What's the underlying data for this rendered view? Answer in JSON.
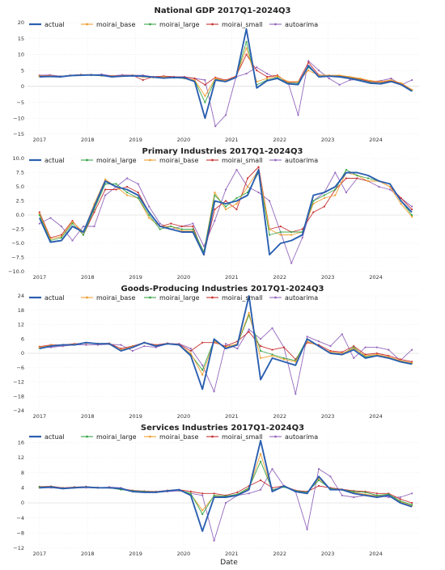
{
  "colors": {
    "actual": "#2b5fb0",
    "moirai_base": "#f0a032",
    "moirai_large": "#3aa74a",
    "moirai_small": "#c83232",
    "autoarima": "#9467bd"
  },
  "xlabel": "Date",
  "chart_data": [
    {
      "type": "line",
      "title": "National GDP 2017Q1-2024Q3",
      "legend": [
        "actual",
        "moirai_base",
        "moirai_large",
        "moirai_small",
        "autoarima"
      ],
      "legend_position": "top-left",
      "ylim": [
        -15,
        20
      ],
      "yticks": [
        -15,
        -10,
        -5,
        0,
        5,
        10,
        15,
        20
      ],
      "xticks": [
        "2017",
        "2018",
        "2019",
        "2020",
        "2021",
        "2022",
        "2023",
        "2024"
      ],
      "grid": true,
      "series": [
        {
          "name": "actual",
          "values": [
            3.0,
            3.1,
            3.0,
            3.4,
            3.5,
            3.6,
            3.5,
            3.0,
            3.2,
            3.3,
            3.2,
            2.9,
            2.6,
            2.8,
            2.7,
            1.5,
            -10.0,
            2.0,
            1.5,
            2.8,
            18.0,
            -0.5,
            1.8,
            2.5,
            0.8,
            0.6,
            6.5,
            3.0,
            3.2,
            3.0,
            2.5,
            1.8,
            1.0,
            0.8,
            1.5,
            0.5,
            -1.5
          ]
        },
        {
          "name": "moirai_base",
          "values": [
            3.2,
            3.3,
            3.0,
            3.5,
            3.6,
            3.6,
            3.4,
            3.2,
            3.3,
            3.4,
            3.0,
            2.8,
            3.0,
            2.8,
            2.6,
            2.0,
            -3.0,
            2.5,
            1.8,
            3.0,
            12.0,
            1.5,
            2.5,
            3.2,
            1.5,
            1.5,
            5.0,
            3.5,
            3.5,
            3.5,
            3.0,
            2.5,
            1.8,
            1.5,
            2.0,
            1.0,
            -1.0
          ]
        },
        {
          "name": "moirai_large",
          "values": [
            3.1,
            3.2,
            3.1,
            3.4,
            3.5,
            3.5,
            3.3,
            3.1,
            3.2,
            3.3,
            3.0,
            2.8,
            2.8,
            2.7,
            2.5,
            1.8,
            -5.0,
            2.3,
            1.7,
            2.9,
            14.0,
            0.5,
            2.0,
            2.8,
            1.0,
            1.0,
            6.0,
            3.2,
            3.3,
            3.2,
            2.7,
            2.0,
            1.2,
            1.0,
            1.6,
            0.6,
            -1.3
          ]
        },
        {
          "name": "moirai_small",
          "values": [
            3.3,
            3.4,
            3.1,
            3.5,
            3.7,
            3.7,
            3.5,
            3.3,
            3.4,
            3.5,
            2.0,
            3.0,
            3.2,
            3.0,
            2.9,
            2.5,
            0.5,
            2.8,
            2.0,
            3.2,
            10.0,
            5.0,
            3.0,
            3.5,
            1.2,
            1.4,
            7.5,
            3.6,
            3.4,
            3.4,
            2.8,
            2.3,
            1.5,
            1.3,
            1.8,
            0.8,
            -1.2
          ]
        },
        {
          "name": "autoarima",
          "values": [
            3.5,
            3.6,
            3.2,
            3.4,
            3.7,
            3.6,
            3.8,
            3.3,
            3.6,
            3.5,
            3.5,
            3.0,
            3.2,
            3.0,
            3.0,
            2.5,
            2.0,
            -12.5,
            -9.0,
            3.0,
            4.0,
            6.0,
            4.0,
            2.5,
            1.5,
            -9.0,
            8.0,
            5.0,
            2.5,
            0.5,
            2.0,
            2.2,
            1.5,
            1.8,
            2.5,
            0.5,
            2.0
          ]
        }
      ]
    },
    {
      "type": "line",
      "title": "Primary Industries 2017Q1-2024Q3",
      "legend": [
        "actual",
        "moirai_large",
        "moirai_base",
        "moirai_small",
        "autoarima"
      ],
      "legend_position": "top-left",
      "ylim": [
        -10,
        10
      ],
      "yticks": [
        -10.0,
        -7.5,
        -5.0,
        -2.5,
        0.0,
        2.5,
        5.0,
        7.5,
        10.0
      ],
      "xticks": [
        "2017",
        "2018",
        "2019",
        "2020",
        "2021",
        "2022",
        "2023",
        "2024"
      ],
      "grid": true,
      "series": [
        {
          "name": "actual",
          "values": [
            -0.5,
            -4.8,
            -4.5,
            -2.0,
            -3.0,
            1.5,
            6.0,
            5.0,
            4.5,
            3.5,
            0.5,
            -2.0,
            -2.5,
            -3.0,
            -3.0,
            -7.0,
            2.5,
            2.0,
            2.5,
            3.5,
            8.0,
            -7.0,
            -5.0,
            -4.5,
            -3.5,
            3.5,
            4.0,
            5.0,
            7.5,
            7.5,
            7.0,
            6.0,
            5.5,
            2.5,
            0.5
          ]
        },
        {
          "name": "moirai_large",
          "values": [
            0.0,
            -4.5,
            -4.0,
            -1.5,
            -3.5,
            1.0,
            5.5,
            5.5,
            4.0,
            3.0,
            0.0,
            -2.5,
            -2.0,
            -2.5,
            -2.5,
            -6.5,
            3.5,
            1.5,
            3.0,
            4.0,
            7.5,
            -3.5,
            -3.0,
            -3.0,
            -3.0,
            2.5,
            3.5,
            4.5,
            8.0,
            7.0,
            6.5,
            6.0,
            5.5,
            2.5,
            0.0
          ]
        },
        {
          "name": "moirai_base",
          "values": [
            0.2,
            -4.2,
            -3.8,
            -1.2,
            -3.0,
            2.0,
            6.3,
            5.0,
            3.5,
            3.0,
            -0.5,
            -2.0,
            -2.0,
            -2.8,
            -2.8,
            -6.5,
            4.0,
            1.0,
            2.0,
            5.0,
            8.0,
            -2.5,
            -3.5,
            -3.5,
            -3.0,
            2.0,
            3.0,
            3.5,
            7.5,
            7.0,
            6.0,
            6.0,
            5.0,
            2.0,
            -0.3
          ]
        },
        {
          "name": "moirai_small",
          "values": [
            0.5,
            -4.0,
            -3.5,
            -1.0,
            -3.5,
            0.5,
            4.5,
            4.5,
            5.0,
            4.0,
            0.5,
            -2.0,
            -1.5,
            -2.0,
            -2.0,
            -7.0,
            1.0,
            2.5,
            1.0,
            6.5,
            8.5,
            -2.5,
            -2.0,
            -3.0,
            -2.5,
            0.5,
            1.5,
            4.5,
            6.5,
            6.5,
            6.0,
            6.0,
            5.0,
            3.0,
            1.0
          ]
        },
        {
          "name": "autoarima",
          "values": [
            -1.5,
            -0.5,
            -2.0,
            -4.5,
            -2.0,
            -2.0,
            3.5,
            5.0,
            6.5,
            5.5,
            1.5,
            -1.5,
            -2.5,
            -2.0,
            -1.5,
            -5.5,
            -1.0,
            4.5,
            8.0,
            5.0,
            4.0,
            2.5,
            -3.0,
            -8.5,
            -4.0,
            2.5,
            4.0,
            7.5,
            4.0,
            6.5,
            6.0,
            5.0,
            4.5,
            3.0,
            1.5
          ]
        }
      ]
    },
    {
      "type": "line",
      "title": "Goods-Producing Industries 2017Q1-2024Q3",
      "legend": [
        "actual",
        "moirai_base",
        "moirai_large",
        "moirai_small",
        "autoarima"
      ],
      "legend_position": "top-left",
      "ylim": [
        -24,
        24
      ],
      "yticks": [
        -24,
        -18,
        -12,
        -6,
        0,
        6,
        12,
        18,
        24
      ],
      "xticks": [
        "2017",
        "2018",
        "2019",
        "2020",
        "2021",
        "2022",
        "2023",
        "2024"
      ],
      "grid": true,
      "series": [
        {
          "name": "actual",
          "values": [
            2.0,
            3.0,
            3.5,
            3.5,
            4.5,
            4.0,
            4.0,
            1.0,
            2.5,
            4.5,
            3.0,
            4.0,
            3.5,
            -1.0,
            -15.0,
            6.0,
            2.0,
            3.5,
            24.0,
            -11.0,
            -2.0,
            -3.5,
            -5.0,
            6.0,
            3.0,
            0.0,
            -0.5,
            1.5,
            -2.0,
            -1.0,
            -2.0,
            -3.5,
            -4.5
          ]
        },
        {
          "name": "moirai_base",
          "values": [
            2.5,
            3.3,
            3.5,
            3.8,
            4.3,
            4.0,
            4.0,
            1.5,
            2.8,
            4.3,
            3.2,
            4.0,
            3.5,
            0.0,
            -9.0,
            5.0,
            2.5,
            4.0,
            17.0,
            -2.0,
            -1.0,
            -2.5,
            -3.5,
            5.0,
            3.0,
            0.5,
            0.0,
            2.0,
            -1.0,
            -0.5,
            -1.5,
            -3.0,
            -4.0
          ]
        },
        {
          "name": "moirai_large",
          "values": [
            2.2,
            3.1,
            3.5,
            3.6,
            4.4,
            4.0,
            4.0,
            1.2,
            2.6,
            4.4,
            3.1,
            4.0,
            3.5,
            -0.5,
            -7.0,
            5.5,
            2.3,
            3.8,
            16.0,
            1.0,
            -0.5,
            -2.0,
            -3.0,
            6.0,
            3.0,
            0.3,
            -0.3,
            2.5,
            -1.5,
            -0.8,
            -1.8,
            -3.2,
            -4.2
          ]
        },
        {
          "name": "moirai_small",
          "values": [
            2.8,
            3.5,
            3.6,
            4.0,
            4.2,
            4.1,
            4.2,
            2.0,
            3.0,
            4.5,
            3.5,
            4.2,
            3.8,
            1.0,
            4.5,
            4.5,
            3.0,
            5.0,
            9.0,
            3.0,
            1.5,
            2.5,
            -2.5,
            4.5,
            3.5,
            1.0,
            0.5,
            3.0,
            -0.5,
            0.0,
            -1.0,
            -2.5,
            -3.5
          ]
        },
        {
          "name": "autoarima",
          "values": [
            2.5,
            2.5,
            3.0,
            3.5,
            3.5,
            3.5,
            3.8,
            3.5,
            1.0,
            3.0,
            2.5,
            4.0,
            4.0,
            2.0,
            -5.0,
            -16.0,
            4.0,
            2.0,
            10.0,
            6.0,
            10.5,
            2.5,
            -17.0,
            7.0,
            5.0,
            3.0,
            8.0,
            -2.0,
            2.5,
            2.5,
            1.5,
            -3.0,
            1.5
          ]
        }
      ]
    },
    {
      "type": "line",
      "title": "Services Industries 2017Q1-2024Q3",
      "legend": [
        "actual",
        "moirai_large",
        "moirai_base",
        "moirai_small",
        "autoarima"
      ],
      "legend_position": "top-left",
      "ylim": [
        -12,
        18
      ],
      "yticks": [
        -12,
        -8,
        -4,
        0,
        4,
        8,
        12,
        16
      ],
      "xticks": [
        "2017",
        "2018",
        "2019",
        "2020",
        "2021",
        "2022",
        "2023",
        "2024"
      ],
      "grid": true,
      "xlabel": "Date",
      "series": [
        {
          "name": "actual",
          "values": [
            4.0,
            4.2,
            3.8,
            4.0,
            4.2,
            4.0,
            4.0,
            3.8,
            3.0,
            2.8,
            2.8,
            3.2,
            3.5,
            2.0,
            -7.5,
            1.5,
            1.5,
            2.0,
            3.5,
            16.5,
            3.0,
            4.5,
            3.0,
            2.5,
            7.0,
            3.5,
            3.5,
            2.5,
            2.0,
            1.5,
            2.0,
            0.0,
            -1.0
          ]
        },
        {
          "name": "moirai_large",
          "values": [
            4.2,
            4.3,
            3.9,
            4.1,
            4.2,
            4.0,
            4.0,
            3.5,
            3.2,
            3.0,
            2.9,
            3.2,
            3.4,
            2.5,
            -3.0,
            2.0,
            1.8,
            2.3,
            4.0,
            11.0,
            3.5,
            4.2,
            3.2,
            2.8,
            6.0,
            3.8,
            3.5,
            3.0,
            2.8,
            2.0,
            2.3,
            0.5,
            -0.5
          ]
        },
        {
          "name": "moirai_base",
          "values": [
            4.1,
            4.2,
            3.8,
            4.0,
            4.1,
            4.0,
            4.0,
            3.6,
            3.1,
            2.9,
            2.9,
            3.2,
            3.4,
            2.3,
            -2.0,
            1.8,
            1.6,
            2.2,
            3.8,
            13.0,
            3.2,
            4.3,
            3.1,
            2.6,
            6.5,
            3.6,
            3.4,
            2.8,
            2.3,
            1.8,
            2.1,
            0.3,
            -0.8
          ]
        },
        {
          "name": "moirai_small",
          "values": [
            4.3,
            4.4,
            4.0,
            4.2,
            4.3,
            4.1,
            4.1,
            3.8,
            3.3,
            3.1,
            3.0,
            3.3,
            3.5,
            3.0,
            2.5,
            2.5,
            2.0,
            2.8,
            4.5,
            6.0,
            4.0,
            4.5,
            3.3,
            3.0,
            4.5,
            4.0,
            3.6,
            3.2,
            3.0,
            2.5,
            2.5,
            1.0,
            0.0
          ]
        },
        {
          "name": "autoarima",
          "values": [
            4.0,
            4.0,
            3.8,
            4.0,
            4.0,
            4.0,
            4.2,
            4.0,
            3.0,
            3.0,
            2.8,
            3.0,
            3.2,
            2.5,
            2.0,
            -10.0,
            0.0,
            2.0,
            2.5,
            3.5,
            9.0,
            4.5,
            3.0,
            -7.0,
            9.0,
            7.0,
            2.0,
            1.5,
            2.0,
            2.0,
            1.5,
            1.5,
            2.5
          ]
        }
      ]
    }
  ]
}
